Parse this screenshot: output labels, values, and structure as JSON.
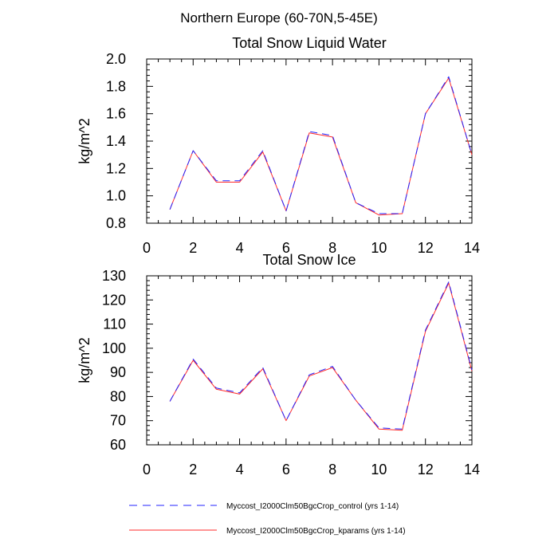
{
  "page": {
    "super_title": "Northern Europe (60-70N,5-45E)"
  },
  "colors": {
    "control": "#2323ff",
    "kparams": "#ff2a2a",
    "axis": "#000000"
  },
  "chart_data": [
    {
      "type": "line",
      "title": "Total Snow Liquid Water",
      "xlabel": "",
      "ylabel": "kg/m^2",
      "xlim": [
        0,
        14
      ],
      "ylim": [
        0.8,
        2.0
      ],
      "xticks": [
        0,
        2,
        4,
        6,
        8,
        10,
        12,
        14
      ],
      "xtick_labels": [
        "0",
        "2",
        "4",
        "6",
        "8",
        "10",
        "12",
        "14"
      ],
      "yticks": [
        0.8,
        1.0,
        1.2,
        1.4,
        1.6,
        1.8,
        2.0
      ],
      "ytick_labels": [
        "0.8",
        "1.0",
        "1.2",
        "1.4",
        "1.6",
        "1.8",
        "2.0"
      ],
      "x": [
        1,
        2,
        3,
        4,
        5,
        6,
        7,
        8,
        9,
        10,
        11,
        12,
        13,
        14
      ],
      "series": [
        {
          "name": "Myccost_I2000Clm50BgcCrop_control (yrs 1-14)",
          "style": "dashed",
          "color": "#2323ff",
          "values": [
            0.9,
            1.33,
            1.11,
            1.11,
            1.33,
            0.89,
            1.47,
            1.44,
            0.95,
            0.87,
            0.87,
            1.6,
            1.87,
            1.3
          ]
        },
        {
          "name": "Myccost_I2000Clm50BgcCrop_kparams (yrs 1-14)",
          "style": "solid",
          "color": "#ff2a2a",
          "values": [
            0.9,
            1.33,
            1.1,
            1.1,
            1.32,
            0.89,
            1.46,
            1.43,
            0.95,
            0.86,
            0.87,
            1.6,
            1.86,
            1.3
          ]
        }
      ],
      "grid": false
    },
    {
      "type": "line",
      "title": "Total Snow Ice",
      "xlabel": "",
      "ylabel": "kg/m^2",
      "xlim": [
        0,
        14
      ],
      "ylim": [
        60,
        130
      ],
      "xticks": [
        0,
        2,
        4,
        6,
        8,
        10,
        12,
        14
      ],
      "xtick_labels": [
        "0",
        "2",
        "4",
        "6",
        "8",
        "10",
        "12",
        "14"
      ],
      "yticks": [
        60,
        70,
        80,
        90,
        100,
        110,
        120,
        130
      ],
      "ytick_labels": [
        "60",
        "70",
        "80",
        "90",
        "100",
        "110",
        "120",
        "130"
      ],
      "x": [
        1,
        2,
        3,
        4,
        5,
        6,
        7,
        8,
        9,
        10,
        11,
        12,
        13,
        14
      ],
      "series": [
        {
          "name": "Myccost_I2000Clm50BgcCrop_control (yrs 1-14)",
          "style": "dashed",
          "color": "#2323ff",
          "values": [
            78,
            95.5,
            83.5,
            81.5,
            92,
            70,
            89,
            92.5,
            78.5,
            67,
            66.5,
            107.5,
            127.5,
            91
          ]
        },
        {
          "name": "Myccost_I2000Clm50BgcCrop_kparams (yrs 1-14)",
          "style": "solid",
          "color": "#ff2a2a",
          "values": [
            78,
            95,
            83,
            81,
            91.5,
            70,
            88.5,
            92,
            78.5,
            66.5,
            66,
            107,
            127,
            90.5
          ]
        }
      ],
      "grid": false
    }
  ],
  "legend": {
    "placement": "bottom",
    "entries": [
      {
        "label": "Myccost_I2000Clm50BgcCrop_control (yrs 1-14)",
        "style": "dashed",
        "color": "#2323ff"
      },
      {
        "label": "Myccost_I2000Clm50BgcCrop_kparams (yrs 1-14)",
        "style": "solid",
        "color": "#ff2a2a"
      }
    ]
  }
}
